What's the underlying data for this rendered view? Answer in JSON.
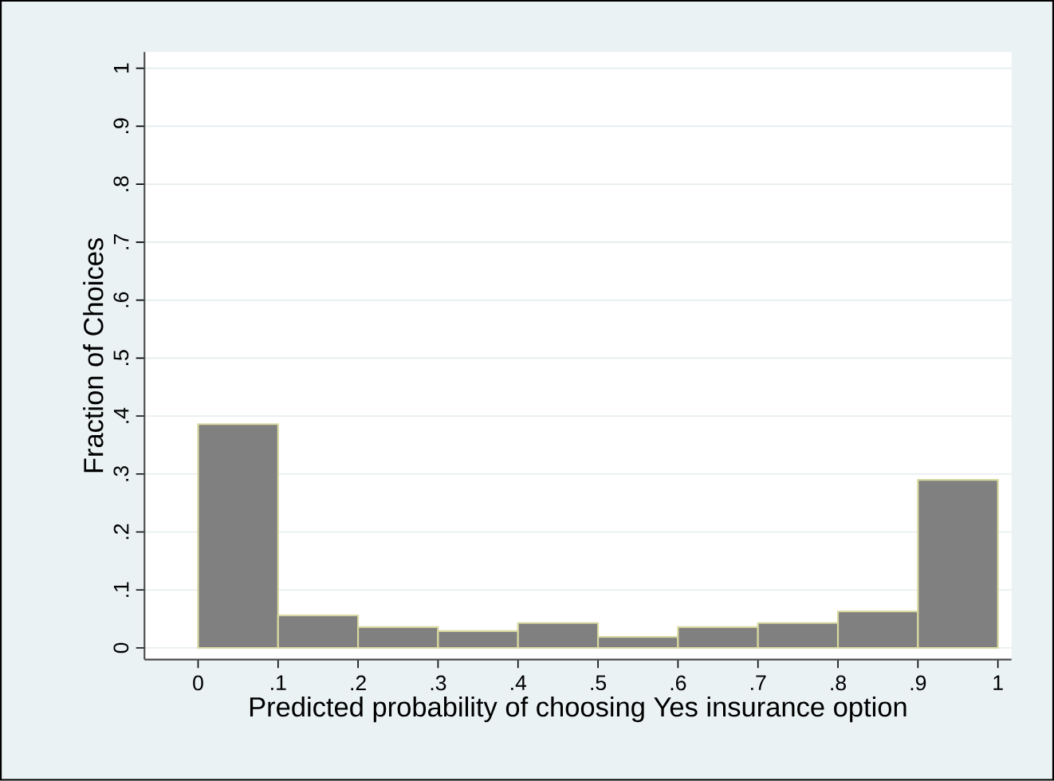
{
  "chart_data": {
    "type": "histogram",
    "xlabel": "Predicted probability of choosing Yes insurance option",
    "ylabel": "Fraction of Choices",
    "bins": [
      0,
      0.1,
      0.2,
      0.3,
      0.4,
      0.5,
      0.6,
      0.7,
      0.8,
      0.9,
      1.0
    ],
    "values": [
      0.386,
      0.056,
      0.036,
      0.029,
      0.043,
      0.019,
      0.036,
      0.043,
      0.063,
      0.29
    ],
    "color": "#808080",
    "xlim": [
      -0.067,
      1.017
    ],
    "ylim": [
      -0.02,
      1.028
    ],
    "xticks": [
      0,
      {
        "value": 0.1,
        "label": ".1"
      },
      {
        "value": 0.2,
        "label": ".2"
      },
      {
        "value": 0.3,
        "label": ".3"
      },
      {
        "value": 0.4,
        "label": ".4"
      },
      {
        "value": 0.5,
        "label": ".5"
      },
      {
        "value": 0.6,
        "label": ".6"
      },
      {
        "value": 0.7,
        "label": ".7"
      },
      {
        "value": 0.8,
        "label": ".8"
      },
      {
        "value": 0.9,
        "label": ".9"
      },
      1
    ],
    "yticks": [
      0,
      {
        "value": 0.1,
        "label": ".1"
      },
      {
        "value": 0.2,
        "label": ".2"
      },
      {
        "value": 0.3,
        "label": ".3"
      },
      {
        "value": 0.4,
        "label": ".4"
      },
      {
        "value": 0.5,
        "label": ".5"
      },
      {
        "value": 0.6,
        "label": ".6"
      },
      {
        "value": 0.7,
        "label": ".7"
      },
      {
        "value": 0.8,
        "label": ".8"
      },
      {
        "value": 0.9,
        "label": ".9"
      },
      1
    ],
    "grid": "y"
  }
}
